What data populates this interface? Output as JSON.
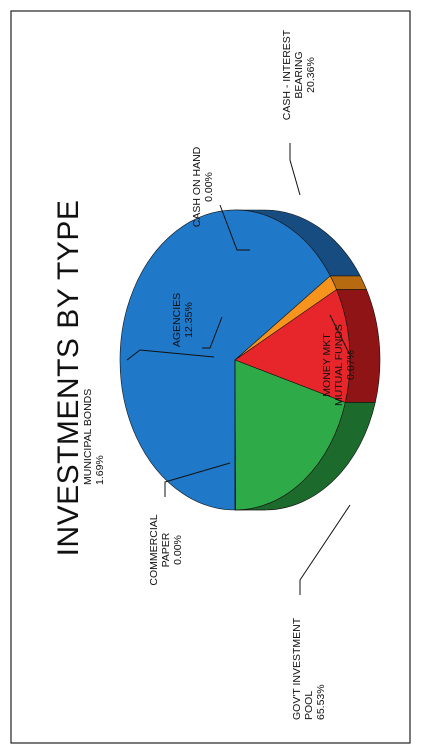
{
  "chart_data": {
    "type": "pie",
    "title": "INVESTMENTS BY TYPE",
    "slices": [
      {
        "lines": [
          "GOV'T INVESTMENT",
          "POOL",
          "65.53%"
        ],
        "value": 65.53,
        "color": "#1f78c8",
        "side_color": "#174c80"
      },
      {
        "lines": [
          "COMMERCIAL",
          "PAPER",
          "0.00%"
        ],
        "value": 0.0,
        "color": "#c9c9c9",
        "side_color": "#999999"
      },
      {
        "lines": [
          "MUNICIPAL BONDS",
          "1.69%"
        ],
        "value": 1.69,
        "color": "#f7941d",
        "side_color": "#b86a10"
      },
      {
        "lines": [
          "AGENCIES",
          "12.35%"
        ],
        "value": 12.35,
        "color": "#e6262a",
        "side_color": "#8e1416"
      },
      {
        "lines": [
          "CASH ON HAND",
          "0.00%"
        ],
        "value": 0.0,
        "color": "#c9c9c9",
        "side_color": "#999999"
      },
      {
        "lines": [
          "CASH - INTEREST",
          "BEARING",
          "20.36%"
        ],
        "value": 20.36,
        "color": "#2eaa48",
        "side_color": "#1c6a2c"
      },
      {
        "lines": [
          "MONEY MKT",
          "MUTUAL FUNDS",
          "0.07%"
        ],
        "value": 0.07,
        "color": "#2eaa48",
        "side_color": "#1c6a2c"
      }
    ],
    "legend": "none"
  }
}
